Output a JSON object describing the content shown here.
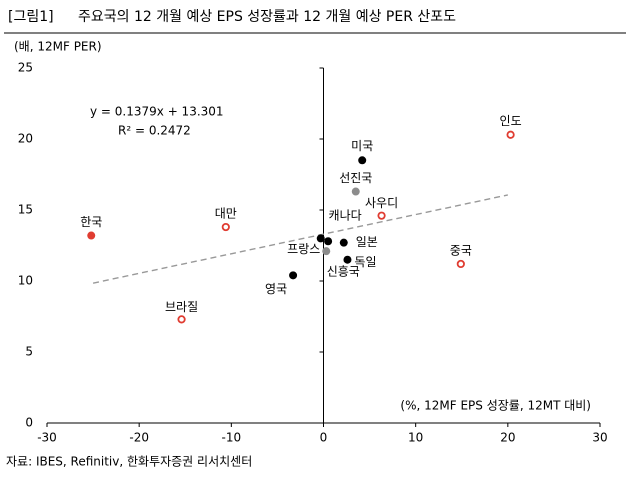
{
  "chart_data": {
    "type": "scatter",
    "title": "주요국의 12 개월 예상 EPS 성장률과 12 개월 예상 PER 산포도",
    "figure_label": "[그림1]",
    "y_label": "(배, 12MF PER)",
    "x_label": "(%, 12MF EPS 성장률, 12MT 대비)",
    "source": "자료: IBES, Refinitiv, 한화투자증권 리서치센터",
    "equation": "y = 0.1379x + 13.301",
    "r_squared": "R² = 0.2472",
    "xlim": [
      -30,
      30
    ],
    "xticks": [
      -30,
      -20,
      -10,
      0,
      10,
      20,
      30
    ],
    "ylim": [
      0,
      25
    ],
    "yticks": [
      0,
      5,
      10,
      15,
      20,
      25
    ],
    "trendline": {
      "x": [
        -25,
        20
      ],
      "values": [
        9.85,
        16.06
      ],
      "color": "#999999"
    },
    "points": [
      {
        "label": "한국",
        "x": -25.2,
        "y": 13.2,
        "color": "#e03c31",
        "filled": true
      },
      {
        "label": "대만",
        "x": -10.6,
        "y": 13.8,
        "color": "#e03c31",
        "filled": false
      },
      {
        "label": "브라질",
        "x": -15.4,
        "y": 7.3,
        "color": "#e03c31",
        "filled": false
      },
      {
        "label": "영국",
        "x": -3.3,
        "y": 10.4,
        "color": "#000000",
        "filled": true
      },
      {
        "label": "프랑스",
        "x": -0.3,
        "y": 13.0,
        "color": "#000000",
        "filled": true
      },
      {
        "label": "캐나다",
        "x": 0.5,
        "y": 12.8,
        "color": "#000000",
        "filled": true
      },
      {
        "label": "일본",
        "x": 2.2,
        "y": 12.7,
        "color": "#000000",
        "filled": true
      },
      {
        "label": "독일",
        "x": 2.6,
        "y": 11.5,
        "color": "#000000",
        "filled": true
      },
      {
        "label": "신흥국",
        "x": 0.3,
        "y": 12.1,
        "color": "#8c8c8c",
        "filled": true
      },
      {
        "label": "미국",
        "x": 4.2,
        "y": 18.5,
        "color": "#000000",
        "filled": true
      },
      {
        "label": "선진국",
        "x": 3.5,
        "y": 16.3,
        "color": "#8c8c8c",
        "filled": true
      },
      {
        "label": "사우디",
        "x": 6.3,
        "y": 14.6,
        "color": "#e03c31",
        "filled": false
      },
      {
        "label": "중국",
        "x": 14.9,
        "y": 11.2,
        "color": "#e03c31",
        "filled": false
      },
      {
        "label": "인도",
        "x": 20.3,
        "y": 20.3,
        "color": "#e03c31",
        "filled": false
      }
    ]
  }
}
